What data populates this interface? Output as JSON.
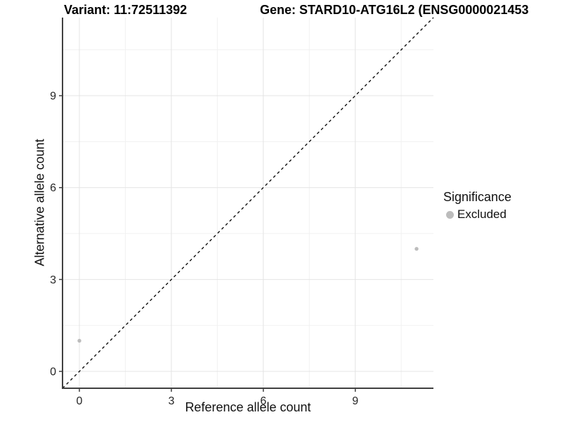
{
  "titles": {
    "variant": "Variant: 11:72511392",
    "gene": "Gene: STARD10-ATG16L2 (ENSG0000021453"
  },
  "axes": {
    "x_label": "Reference allele count",
    "y_label": "Alternative allele count"
  },
  "legend": {
    "title": "Significance",
    "items": [
      {
        "label": "Excluded",
        "color": "#bcbcbc"
      }
    ]
  },
  "chart_data": {
    "type": "scatter",
    "title": "Variant: 11:72511392    Gene: STARD10-ATG16L2 (ENSG0000021453",
    "xlabel": "Reference allele count",
    "ylabel": "Alternative allele count",
    "series": [
      {
        "name": "Excluded",
        "color": "#bcbcbc",
        "points": [
          {
            "x": 0,
            "y": 1
          },
          {
            "x": 11,
            "y": 4
          }
        ]
      }
    ],
    "xlim": [
      -0.55,
      11.55
    ],
    "ylim": [
      -0.55,
      11.55
    ],
    "x_ticks": [
      0,
      3,
      6,
      9
    ],
    "y_ticks": [
      0,
      3,
      6,
      9
    ],
    "minor_gridlines": [
      1.5,
      4.5,
      7.5,
      10.5
    ],
    "grid": true,
    "identity_line": {
      "shown": true,
      "style": "dashed",
      "slope": 1,
      "intercept": 0
    },
    "legend_position": "right",
    "colors": {
      "point": "#bcbcbc",
      "grid_major": "#e4e4e4",
      "grid_minor": "#f1f1f1",
      "axis": "#404040",
      "identity_line": "#000000",
      "background": "#ffffff"
    }
  }
}
